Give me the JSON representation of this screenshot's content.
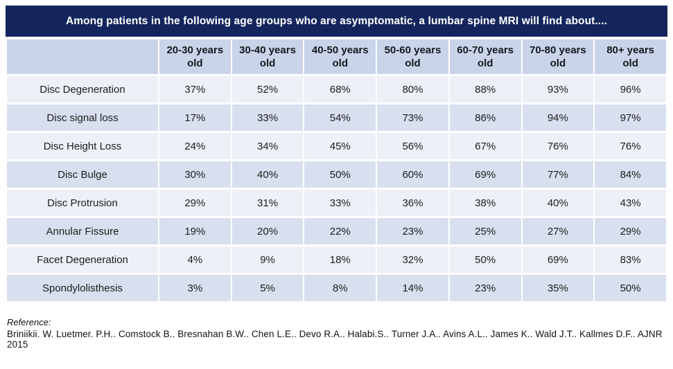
{
  "slide": {
    "title": "Among patients in the following age groups who are asymptomatic, a lumbar spine MRI will find about....",
    "colors": {
      "title_bar_bg": "#13255c",
      "title_text": "#ffffff",
      "header_row_bg": "#c9d4e8",
      "row_odd_bg": "#edf0f7",
      "row_even_bg": "#d8dfee",
      "cell_text": "#1c1c1c"
    }
  },
  "chart_data": {
    "type": "table",
    "title": "Among patients in the following age groups who are asymptomatic, a lumbar spine MRI will find about....",
    "columns": [
      "20-30 years old",
      "30-40 years old",
      "40-50 years old",
      "50-60 years old",
      "60-70 years old",
      "70-80 years old",
      "80+ years old"
    ],
    "rows": [
      {
        "label": "Disc Degeneration",
        "values": [
          "37%",
          "52%",
          "68%",
          "80%",
          "88%",
          "93%",
          "96%"
        ]
      },
      {
        "label": "Disc signal loss",
        "values": [
          "17%",
          "33%",
          "54%",
          "73%",
          "86%",
          "94%",
          "97%"
        ]
      },
      {
        "label": "Disc Height Loss",
        "values": [
          "24%",
          "34%",
          "45%",
          "56%",
          "67%",
          "76%",
          "76%"
        ]
      },
      {
        "label": "Disc Bulge",
        "values": [
          "30%",
          "40%",
          "50%",
          "60%",
          "69%",
          "77%",
          "84%"
        ]
      },
      {
        "label": "Disc Protrusion",
        "values": [
          "29%",
          "31%",
          "33%",
          "36%",
          "38%",
          "40%",
          "43%"
        ]
      },
      {
        "label": "Annular Fissure",
        "values": [
          "19%",
          "20%",
          "22%",
          "23%",
          "25%",
          "27%",
          "29%"
        ]
      },
      {
        "label": "Facet Degeneration",
        "values": [
          "4%",
          "9%",
          "18%",
          "32%",
          "50%",
          "69%",
          "83%"
        ]
      },
      {
        "label": "Spondylolisthesis",
        "values": [
          "3%",
          "5%",
          "8%",
          "14%",
          "23%",
          "35%",
          "50%"
        ]
      }
    ]
  },
  "reference": {
    "label": "Reference:",
    "citation": "Briniikii. W. Luetmer. P.H.. Comstock B.. Bresnahan B.W.. Chen L.E.. Devo R.A.. Halabi.S.. Turner J.A.. Avins A.L.. James K.. Wald J.T.. Kallmes D.F.. AJNR 2015"
  }
}
